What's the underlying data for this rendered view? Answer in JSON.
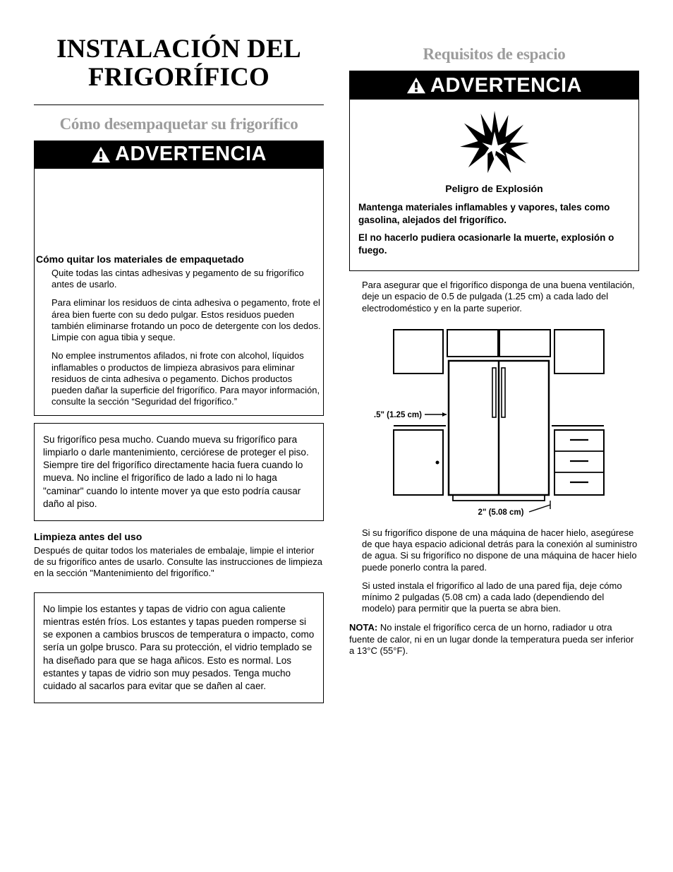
{
  "colors": {
    "text": "#000000",
    "background": "#ffffff",
    "mutedHeading": "#9c9c9c",
    "bannerBg": "#000000",
    "bannerText": "#ffffff"
  },
  "left": {
    "mainTitle": "INSTALACIÓN DEL\nFRIGORÍFICO",
    "subTitle": "Cómo desempaquetar su frigorífico",
    "warningWord": "ADVERTENCIA",
    "section1": {
      "heading": "Cómo quitar los materiales de empaquetado",
      "items": [
        "Quite todas las cintas adhesivas y pegamento de su frigorífico antes de usarlo.",
        "Para eliminar los residuos de cinta adhesiva o pegamento, frote el área bien fuerte con su dedo pulgar. Estos residuos pueden también eliminarse frotando un poco de detergente con los dedos. Limpie con agua tibia y seque.",
        "No emplee instrumentos afilados, ni frote con alcohol, líquidos inflamables o productos de limpieza abrasivos para eliminar residuos de cinta adhesiva o pegamento. Dichos productos pueden dañar la superficie del frigorífico. Para mayor información, consulte la sección “Seguridad del frigorífico.”"
      ]
    },
    "box1": "Su frigorífico pesa mucho. Cuando mueva su frigorífico para limpiarlo o darle mantenimiento, cerciórese de proteger el piso. Siempre tire del frigorífico directamente hacia fuera cuando lo mueva. No incline el frigorífico de lado a lado ni lo haga \"caminar\" cuando lo intente mover ya que esto podría causar daño al piso.",
    "section2": {
      "heading": "Limpieza antes del uso",
      "body": "Después de quitar todos los materiales de embalaje, limpie el interior de su frigorífico antes de usarlo. Consulte las instrucciones de limpieza en la sección \"Mantenimiento del frigorífico.\""
    },
    "box2": "No limpie los estantes y tapas de vidrio con agua caliente mientras estén fríos. Los estantes y tapas pueden romperse si se exponen a cambios bruscos de temperatura o impacto, como sería un golpe brusco. Para su protección, el vidrio templado se ha diseñado para que se haga añicos. Esto es normal. Los estantes y tapas de vidrio son muy pesados. Tenga mucho cuidado al sacarlos para evitar que se dañen al caer."
  },
  "right": {
    "subTitle": "Requisitos de espacio",
    "warningWord": "ADVERTENCIA",
    "danger": {
      "title": "Peligro de Explosión",
      "line1": "Mantenga materiales inflamables y vapores, tales como gasolina, alejados del frigorífico.",
      "line2": "El no hacerlo pudiera ocasionarle la muerte, explosión o fuego."
    },
    "para1": "Para asegurar que el frigorífico disponga de una buena ventilación, deje un espacio de 0.5 de pulgada (1.25 cm) a cada lado del electrodoméstico y en la parte superior.",
    "diagram": {
      "labelTop": ".5\" (1.25 cm)",
      "labelBottom": "2\" (5.08 cm)"
    },
    "para2": "Si su frigorífico dispone de una máquina de hacer hielo, asegúrese de que haya espacio adicional detrás para la conexión al suministro de agua. Si su frigorífico no dispone de una máquina de hacer hielo puede ponerlo contra la pared.",
    "para3": "Si usted instala el frigorífico al lado de una pared fija, deje cómo mínimo 2 pulgadas (5.08 cm) a cada lado (dependiendo del modelo) para permitir que la puerta se abra bien.",
    "nota": {
      "label": "NOTA:",
      "text": " No instale el frigorífico cerca de un horno, radiador u otra fuente de calor, ni en un lugar donde la temperatura pueda ser inferior a 13°C (55°F)."
    }
  }
}
